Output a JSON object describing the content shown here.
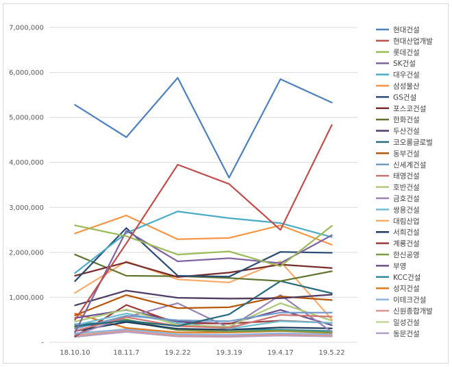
{
  "chart_data": {
    "type": "line",
    "title": "",
    "xlabel": "",
    "ylabel": "",
    "categories": [
      "18.10.10",
      "18.11.7",
      "19.2.22",
      "19.3.19",
      "19.4.17",
      "19.5.22"
    ],
    "ylim": [
      0,
      7000000
    ],
    "y_ticks": [
      {
        "value": 0,
        "label": "-"
      },
      {
        "value": 1000000,
        "label": "1,000,000"
      },
      {
        "value": 2000000,
        "label": "2,000,000"
      },
      {
        "value": 3000000,
        "label": "3,000,000"
      },
      {
        "value": 4000000,
        "label": "4,000,000"
      },
      {
        "value": 5000000,
        "label": "5,000,000"
      },
      {
        "value": 6000000,
        "label": "6,000,000"
      },
      {
        "value": 7000000,
        "label": "7,000,000"
      }
    ],
    "grid": true,
    "legend_position": "right",
    "series": [
      {
        "name": "현대건설",
        "color": "#4f81bd",
        "values": [
          5280000,
          4560000,
          5880000,
          3660000,
          5850000,
          5330000
        ]
      },
      {
        "name": "현대산업개발",
        "color": "#c0504d",
        "values": [
          500000,
          2200000,
          3950000,
          3520000,
          2500000,
          4830000
        ]
      },
      {
        "name": "롯데건설",
        "color": "#9bbb59",
        "values": [
          2600000,
          2360000,
          1950000,
          2020000,
          1690000,
          2590000
        ]
      },
      {
        "name": "SK건설",
        "color": "#8064a2",
        "values": [
          220000,
          2480000,
          1800000,
          1870000,
          1760000,
          2380000
        ]
      },
      {
        "name": "대우건설",
        "color": "#4bacc6",
        "values": [
          1540000,
          2430000,
          2910000,
          2760000,
          2650000,
          2340000
        ]
      },
      {
        "name": "삼성물산",
        "color": "#f79646",
        "values": [
          2420000,
          2820000,
          2290000,
          2320000,
          2600000,
          2170000
        ]
      },
      {
        "name": "GS건설",
        "color": "#2c4d75",
        "values": [
          1360000,
          2540000,
          1480000,
          1460000,
          2010000,
          1990000
        ]
      },
      {
        "name": "포스코건설",
        "color": "#772c2a",
        "values": [
          1480000,
          1780000,
          1450000,
          1550000,
          1730000,
          1650000
        ]
      },
      {
        "name": "한화건설",
        "color": "#5f7530",
        "values": [
          1950000,
          1480000,
          1470000,
          1430000,
          1360000,
          1580000
        ]
      },
      {
        "name": "두산건설",
        "color": "#4d3b62",
        "values": [
          820000,
          1150000,
          990000,
          970000,
          980000,
          1060000
        ]
      },
      {
        "name": "코오롱글로벌",
        "color": "#276a7c",
        "values": [
          360000,
          480000,
          360000,
          620000,
          1360000,
          1090000
        ]
      },
      {
        "name": "동부건설",
        "color": "#b65708",
        "values": [
          600000,
          1050000,
          760000,
          780000,
          1020000,
          940000
        ]
      },
      {
        "name": "신세계건설",
        "color": "#729aca",
        "values": [
          300000,
          590000,
          490000,
          470000,
          660000,
          660000
        ]
      },
      {
        "name": "태영건설",
        "color": "#cd7371",
        "values": [
          250000,
          560000,
          360000,
          320000,
          610000,
          570000
        ]
      },
      {
        "name": "호반건설",
        "color": "#afc97a",
        "values": [
          460000,
          730000,
          380000,
          350000,
          870000,
          480000
        ]
      },
      {
        "name": "금호건설",
        "color": "#9983b5",
        "values": [
          160000,
          560000,
          870000,
          320000,
          1050000,
          230000
        ]
      },
      {
        "name": "쌍용건설",
        "color": "#6fbdd1",
        "values": [
          380000,
          640000,
          430000,
          300000,
          470000,
          430000
        ]
      },
      {
        "name": "대림산업",
        "color": "#f9ab6b",
        "values": [
          1100000,
          1800000,
          1400000,
          1330000,
          1800000,
          510000
        ]
      },
      {
        "name": "서희건설",
        "color": "#1f3b5d",
        "values": [
          250000,
          450000,
          300000,
          280000,
          330000,
          310000
        ]
      },
      {
        "name": "계룡건설",
        "color": "#9c3b39",
        "values": [
          130000,
          830000,
          420000,
          420000,
          480000,
          430000
        ]
      },
      {
        "name": "한신공영",
        "color": "#7d9b40",
        "values": [
          330000,
          510000,
          270000,
          240000,
          260000,
          220000
        ]
      },
      {
        "name": "부영",
        "color": "#6a4f8a",
        "values": [
          540000,
          720000,
          460000,
          410000,
          720000,
          380000
        ]
      },
      {
        "name": "KCC건설",
        "color": "#2f8b9f",
        "values": [
          400000,
          470000,
          270000,
          280000,
          280000,
          250000
        ]
      },
      {
        "name": "성지건설",
        "color": "#e07a1f",
        "values": [
          640000,
          320000,
          220000,
          220000,
          250000,
          210000
        ]
      },
      {
        "name": "이테크건설",
        "color": "#8cb3de",
        "values": [
          200000,
          290000,
          180000,
          170000,
          200000,
          180000
        ]
      },
      {
        "name": "신원종합개발",
        "color": "#d99694",
        "values": [
          150000,
          260000,
          140000,
          140000,
          170000,
          150000
        ]
      },
      {
        "name": "일성건설",
        "color": "#c3d69b",
        "values": [
          170000,
          300000,
          160000,
          150000,
          190000,
          160000
        ]
      },
      {
        "name": "동문건설",
        "color": "#b3a2c7",
        "values": [
          120000,
          230000,
          130000,
          120000,
          150000,
          130000
        ]
      }
    ]
  }
}
